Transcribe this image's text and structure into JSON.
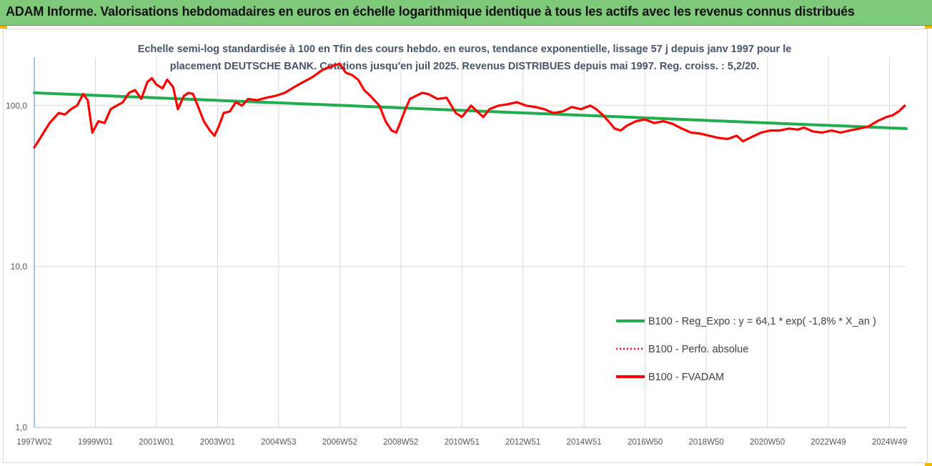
{
  "header": {
    "title": "ADAM Informe. Valorisations hebdomadaires en euros en échelle logarithmique identique à tous les actifs avec les revenus connus distribués"
  },
  "colors": {
    "header_bg": "#7fc97a",
    "regression": "#1fad4f",
    "perf": "#ff0000",
    "fvadam": "#ff0000",
    "grid": "#d9d9d9"
  },
  "chart_data": {
    "type": "line",
    "subtitle_lines": [
      "Echelle semi-log standardisée à 100 en Tfin des cours hebdo. en euros, tendance exponentielle, lissage 57 j depuis janv 1997 pour le",
      "placement DEUTSCHE BANK. Cotations jusqu'en juil 2025. Revenus DISTRIBUES depuis mai 1997. Reg. croiss. : 5,2/20."
    ],
    "y_scale": "log",
    "ylim": [
      1,
      200
    ],
    "y_ticks": [
      {
        "value": 100,
        "label": "100,0"
      },
      {
        "value": 10,
        "label": "10,0"
      },
      {
        "value": 1,
        "label": "1,0"
      }
    ],
    "xlim": [
      1997.0,
      2025.55
    ],
    "x_ticks": [
      {
        "value": 1997.0,
        "label": "1997W02"
      },
      {
        "value": 1999.0,
        "label": "1999W01"
      },
      {
        "value": 2001.0,
        "label": "2001W01"
      },
      {
        "value": 2003.0,
        "label": "2003W01"
      },
      {
        "value": 2005.0,
        "label": "2004W53"
      },
      {
        "value": 2007.0,
        "label": "2006W52"
      },
      {
        "value": 2009.0,
        "label": "2008W52"
      },
      {
        "value": 2011.0,
        "label": "2010W51"
      },
      {
        "value": 2013.0,
        "label": "2012W51"
      },
      {
        "value": 2015.0,
        "label": "2014W51"
      },
      {
        "value": 2017.0,
        "label": "2016W50"
      },
      {
        "value": 2019.0,
        "label": "2018W50"
      },
      {
        "value": 2021.0,
        "label": "2020W50"
      },
      {
        "value": 2023.0,
        "label": "2022W49"
      },
      {
        "value": 2025.0,
        "label": "2024W49"
      }
    ],
    "grid": {
      "vertical": true,
      "horizontal": true
    },
    "legend_position": "bottom-right",
    "series": [
      {
        "name": "B100 - Reg_Expo : y = 64,1 * exp( -1,8% *  X_an )",
        "style": "solid-green",
        "x": [
          1997.0,
          2025.55
        ],
        "y": [
          120,
          72
        ]
      },
      {
        "name": "B100 - Perfo. absolue",
        "style": "dotted-red",
        "x": [],
        "y": []
      },
      {
        "name": "B100 - FVADAM",
        "style": "solid-red",
        "x": [
          1997.0,
          1997.2,
          1997.5,
          1997.8,
          1998.0,
          1998.2,
          1998.4,
          1998.6,
          1998.75,
          1998.9,
          1999.1,
          1999.3,
          1999.5,
          1999.7,
          1999.9,
          2000.1,
          2000.3,
          2000.5,
          2000.7,
          2000.85,
          2001.0,
          2001.2,
          2001.35,
          2001.55,
          2001.7,
          2001.9,
          2002.05,
          2002.2,
          2002.35,
          2002.55,
          2002.75,
          2002.9,
          2003.05,
          2003.2,
          2003.4,
          2003.6,
          2003.8,
          2004.0,
          2004.3,
          2004.6,
          2004.9,
          2005.2,
          2005.5,
          2005.8,
          2006.1,
          2006.4,
          2006.7,
          2007.0,
          2007.2,
          2007.4,
          2007.6,
          2007.8,
          2008.0,
          2008.3,
          2008.5,
          2008.7,
          2008.85,
          2009.0,
          2009.15,
          2009.3,
          2009.5,
          2009.7,
          2009.9,
          2010.2,
          2010.5,
          2010.8,
          2011.0,
          2011.3,
          2011.5,
          2011.7,
          2011.9,
          2012.2,
          2012.5,
          2012.8,
          2013.1,
          2013.4,
          2013.7,
          2014.0,
          2014.3,
          2014.6,
          2014.9,
          2015.2,
          2015.4,
          2015.6,
          2015.8,
          2016.0,
          2016.2,
          2016.4,
          2016.7,
          2017.0,
          2017.3,
          2017.6,
          2017.9,
          2018.2,
          2018.5,
          2018.8,
          2019.1,
          2019.4,
          2019.7,
          2020.0,
          2020.2,
          2020.5,
          2020.8,
          2021.1,
          2021.4,
          2021.7,
          2022.0,
          2022.2,
          2022.5,
          2022.8,
          2023.1,
          2023.4,
          2023.7,
          2024.0,
          2024.3,
          2024.6,
          2024.9,
          2025.1,
          2025.3,
          2025.5
        ],
        "y": [
          55,
          63,
          78,
          90,
          88,
          95,
          100,
          118,
          108,
          68,
          80,
          78,
          95,
          100,
          105,
          120,
          125,
          110,
          140,
          148,
          135,
          128,
          145,
          130,
          95,
          115,
          120,
          118,
          100,
          80,
          70,
          65,
          75,
          90,
          92,
          105,
          100,
          110,
          108,
          112,
          115,
          120,
          130,
          140,
          150,
          165,
          175,
          182,
          160,
          155,
          145,
          125,
          115,
          100,
          80,
          70,
          68,
          80,
          95,
          110,
          115,
          120,
          118,
          110,
          112,
          90,
          85,
          100,
          92,
          85,
          95,
          100,
          102,
          105,
          100,
          98,
          95,
          90,
          92,
          98,
          95,
          100,
          95,
          88,
          80,
          72,
          70,
          75,
          80,
          82,
          78,
          80,
          77,
          72,
          68,
          67,
          65,
          63,
          62,
          65,
          60,
          64,
          68,
          70,
          70,
          72,
          71,
          73,
          69,
          68,
          70,
          68,
          70,
          72,
          74,
          80,
          85,
          87,
          92,
          100
        ]
      }
    ]
  }
}
